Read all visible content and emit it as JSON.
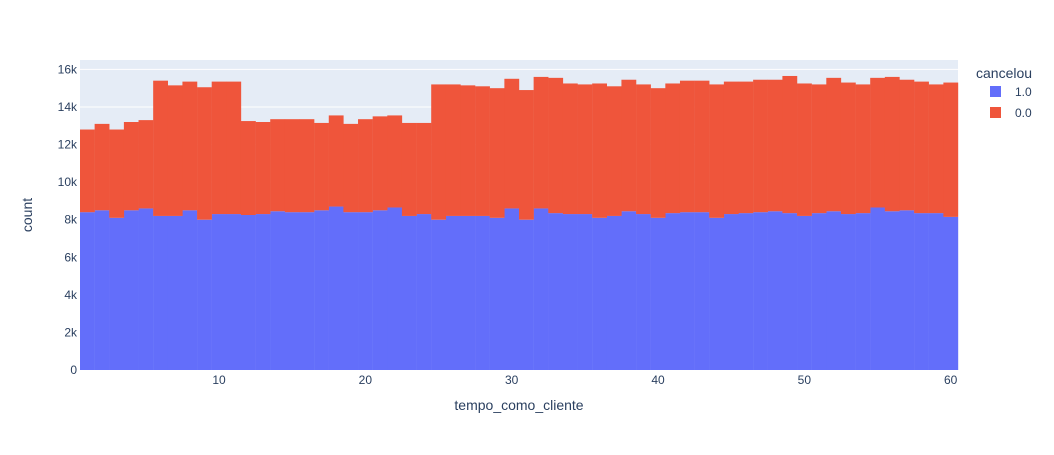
{
  "chart_data": {
    "type": "bar",
    "stacked": true,
    "xlabel": "tempo_como_cliente",
    "ylabel": "count",
    "xlim": [
      0.5,
      60.5
    ],
    "ylim": [
      0,
      16500
    ],
    "xticks": [
      10,
      20,
      30,
      40,
      50,
      60
    ],
    "yticks": [
      0,
      2000,
      4000,
      6000,
      8000,
      10000,
      12000,
      14000,
      16000
    ],
    "ytick_labels": [
      "0",
      "2k",
      "4k",
      "6k",
      "8k",
      "10k",
      "12k",
      "14k",
      "16k"
    ],
    "grid": true,
    "legend_title": "cancelou",
    "legend_position": "top-right",
    "x": [
      1,
      2,
      3,
      4,
      5,
      6,
      7,
      8,
      9,
      10,
      11,
      12,
      13,
      14,
      15,
      16,
      17,
      18,
      19,
      20,
      21,
      22,
      23,
      24,
      25,
      26,
      27,
      28,
      29,
      30,
      31,
      32,
      33,
      34,
      35,
      36,
      37,
      38,
      39,
      40,
      41,
      42,
      43,
      44,
      45,
      46,
      47,
      48,
      49,
      50,
      51,
      52,
      53,
      54,
      55,
      56,
      57,
      58,
      59,
      60
    ],
    "series": [
      {
        "name": "1.0",
        "color": "#636efa",
        "values": [
          8400,
          8500,
          8100,
          8500,
          8600,
          8200,
          8200,
          8500,
          8000,
          8300,
          8300,
          8250,
          8300,
          8450,
          8400,
          8400,
          8500,
          8700,
          8400,
          8400,
          8500,
          8650,
          8200,
          8300,
          8000,
          8200,
          8200,
          8200,
          8100,
          8600,
          8000,
          8600,
          8350,
          8300,
          8300,
          8100,
          8200,
          8450,
          8300,
          8100,
          8350,
          8400,
          8400,
          8100,
          8300,
          8350,
          8400,
          8450,
          8350,
          8200,
          8350,
          8450,
          8300,
          8350,
          8650,
          8450,
          8500,
          8350,
          8350,
          8150
        ]
      },
      {
        "name": "0.0",
        "color": "#ef553b",
        "values": [
          4400,
          4600,
          4700,
          4700,
          4700,
          7200,
          6950,
          6850,
          7050,
          7050,
          7050,
          5000,
          4900,
          4900,
          4950,
          4950,
          4650,
          4850,
          4700,
          4950,
          5000,
          4900,
          4950,
          4850,
          7200,
          7000,
          6950,
          6900,
          6900,
          6900,
          6900,
          7000,
          7200,
          6950,
          6900,
          7150,
          6900,
          7000,
          6900,
          6900,
          6900,
          7000,
          7000,
          7100,
          7050,
          7000,
          7050,
          7000,
          7300,
          7050,
          6850,
          7100,
          7000,
          6850,
          6900,
          7150,
          6950,
          7000,
          6850,
          7150
        ]
      }
    ]
  }
}
